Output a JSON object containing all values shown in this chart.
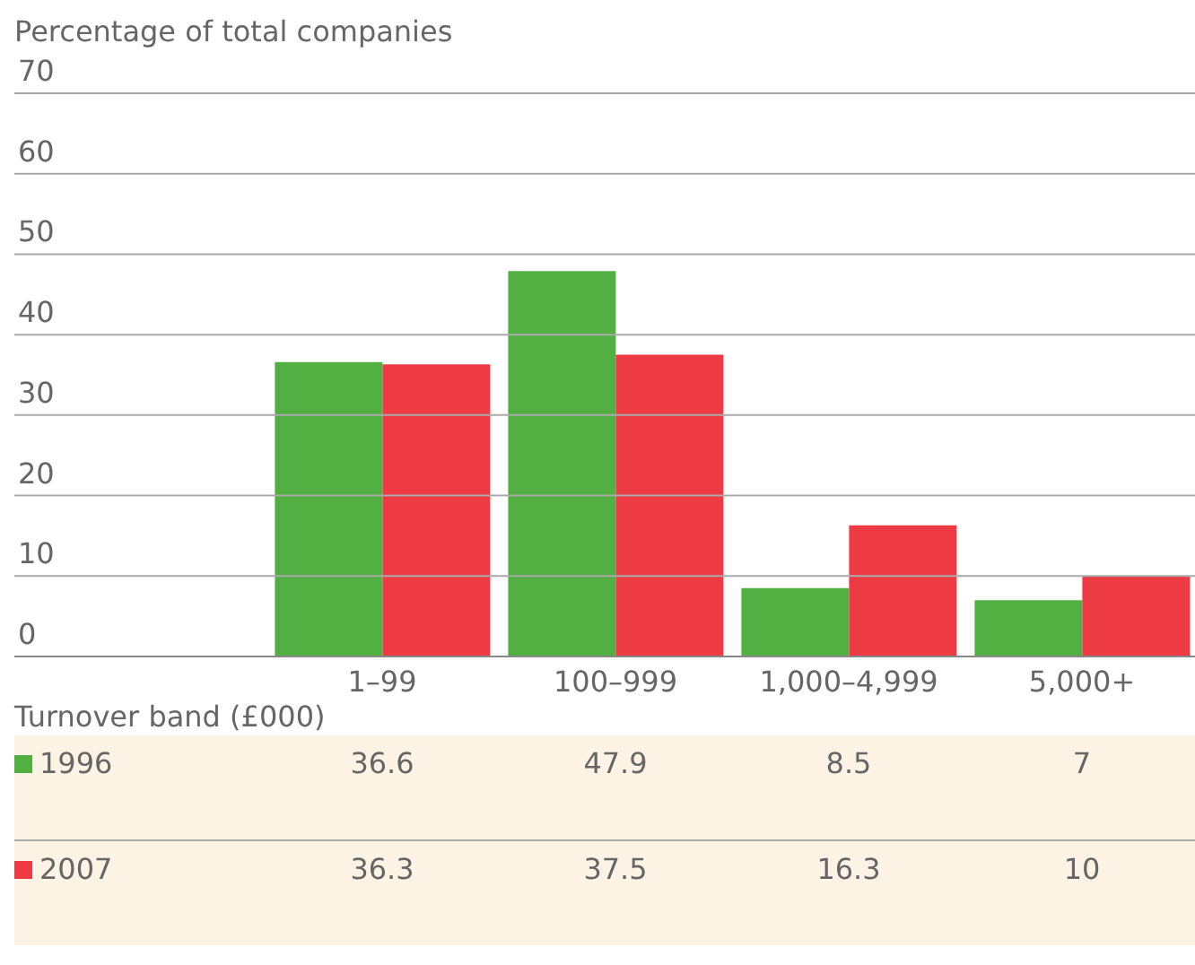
{
  "chart_data": {
    "type": "bar",
    "ylabel": "Percentage of total companies",
    "xlabel": "Turnover band (£000)",
    "categories": [
      "1–99",
      "100–999",
      "1,000–4,999",
      "5,000+"
    ],
    "series": [
      {
        "name": "1996",
        "color": "#52b043",
        "values": [
          36.6,
          47.9,
          8.5,
          7
        ]
      },
      {
        "name": "2007",
        "color": "#ee3a43",
        "values": [
          36.3,
          37.5,
          16.3,
          10
        ]
      }
    ],
    "ylim": [
      0,
      70
    ],
    "yticks": [
      0,
      10,
      20,
      30,
      40,
      50,
      60,
      70
    ],
    "grid": "y",
    "legend": "bottom",
    "data_labels": true
  }
}
